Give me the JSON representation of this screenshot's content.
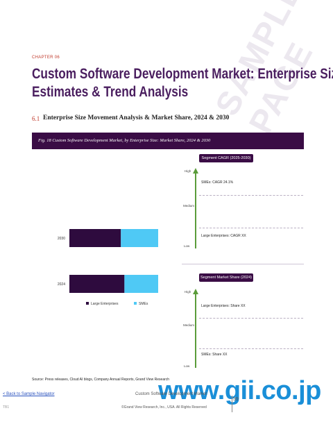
{
  "header": {
    "chapter": "CHAPTER 06",
    "title_line1": "Custom Software Development Market: Enterprise Size",
    "title_line2": "Estimates & Trend Analysis",
    "section_number": "6.1",
    "section_title": "Enterprise Size Movement Analysis & Market Share, 2024 & 2030",
    "figure_caption": "Fig. 18 Custom Software Development Market, by Enterprise Size: Market Share, 2024 & 2030"
  },
  "watermark": "SAMPLE PAGE",
  "chart_data": {
    "type": "bar",
    "orientation": "horizontal",
    "stacked": true,
    "categories": [
      "2030",
      "2024"
    ],
    "series": [
      {
        "name": "Large Enterprises",
        "values": [
          58,
          62
        ],
        "color": "#2e0b3e"
      },
      {
        "name": "SMEs",
        "values": [
          42,
          38
        ],
        "color": "#4fc9f5"
      }
    ],
    "xlim": [
      0,
      100
    ],
    "legend_position": "bottom"
  },
  "segment_cagr": {
    "header": "Segment CAGR (2025-2030)",
    "high": "High",
    "medium": "Medium",
    "low": "Low",
    "top_item": "SMEs: CAGR 24.1%",
    "bottom_item": "Large Enterprises: CAGR XX"
  },
  "segment_share": {
    "header": "Segment Market Share (2024)",
    "high": "High",
    "medium": "Medium",
    "low": "Low",
    "top_item": "Large Enterprises: Share XX",
    "bottom_item": "SMEs: Share XX"
  },
  "colors": {
    "arrow": "#5a9c3a",
    "header_bg": "#3a0c45"
  },
  "footer": {
    "source": "Source: Press releases, Cloud AI blogs, Company Annual Reports, Grand View Research",
    "back_link": "< Back to Sample Navigator",
    "doc_title": "Custom Software Development Market",
    "copyright": "©Grand View Research, Inc., USA. All Rights Reserved",
    "page_number": "39",
    "left_code": "TB1",
    "gii_mark": "www.gii.co.jp"
  }
}
